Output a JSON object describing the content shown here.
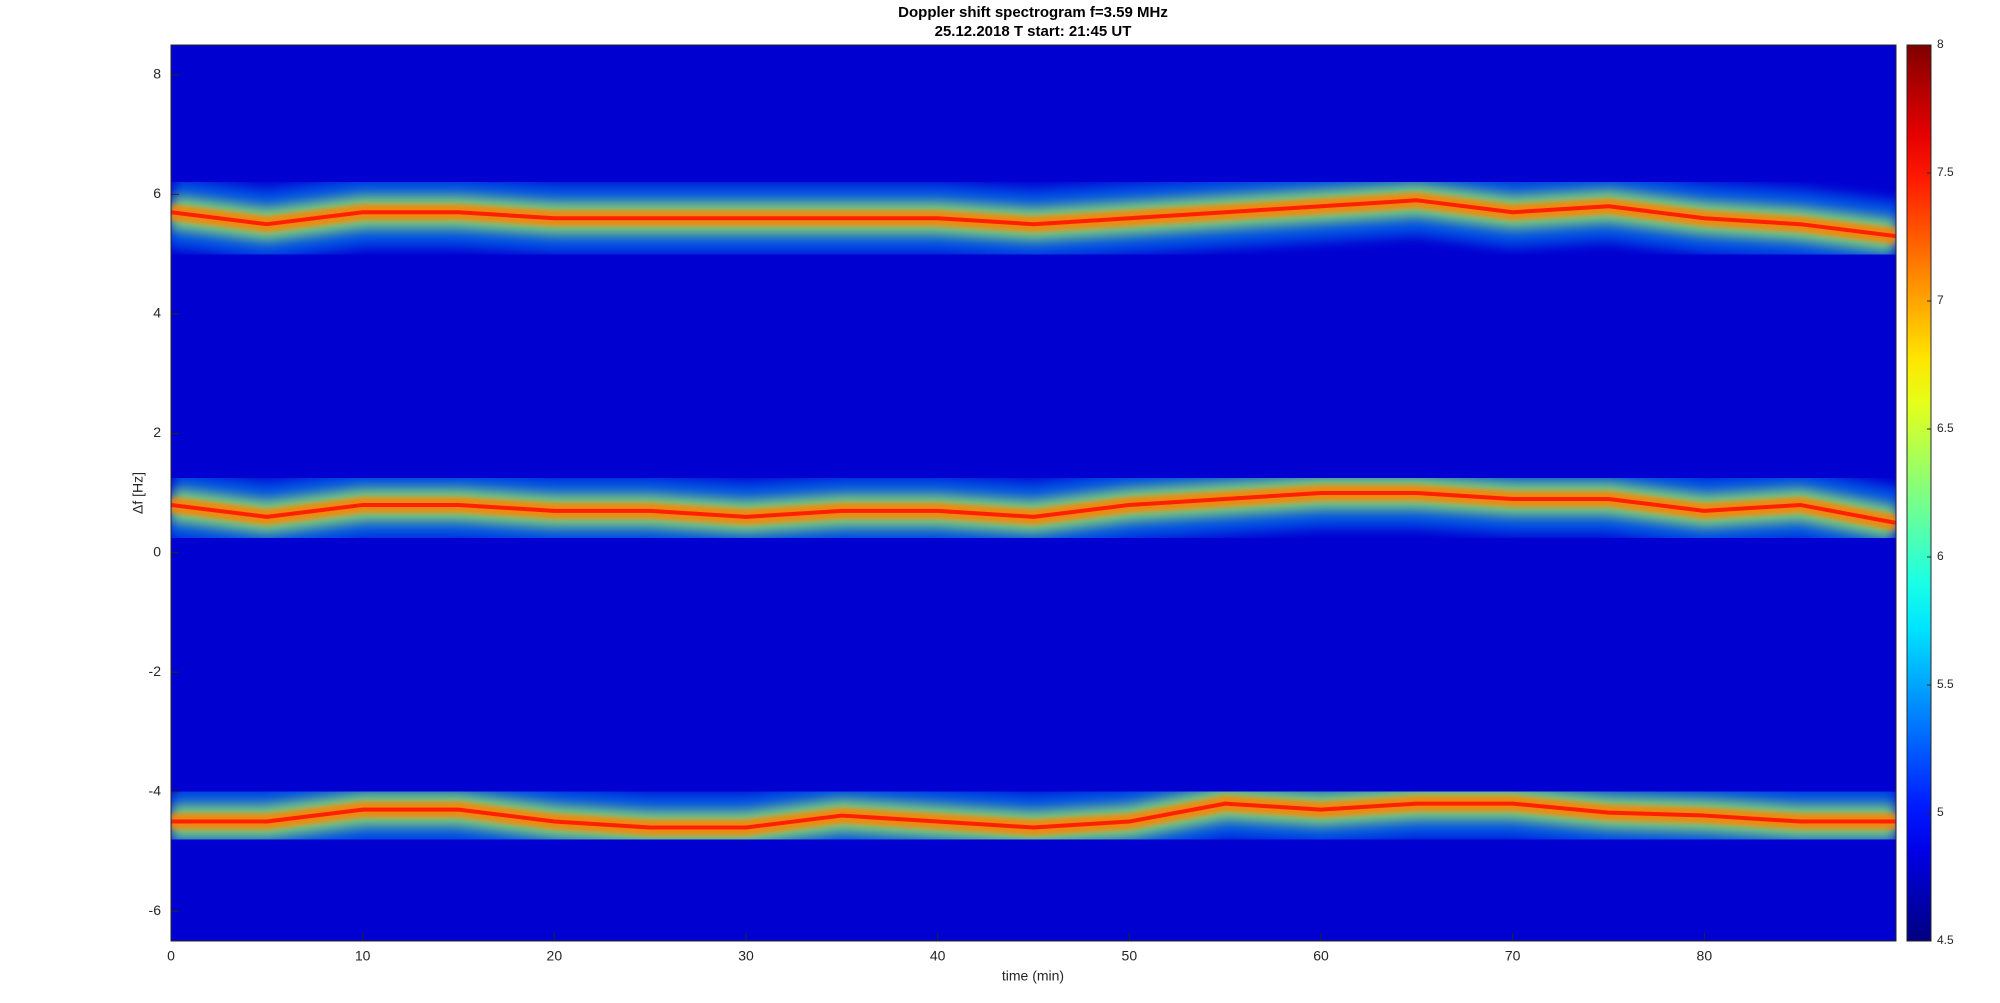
{
  "chart_data": {
    "type": "spectrogram",
    "title": "Doppler shift spectrogram f=3.59 MHz",
    "subtitle": "25.12.2018   T start: 21:45 UT",
    "xlabel": "time (min)",
    "ylabel": "Δf [Hz]",
    "xlim": [
      0,
      90
    ],
    "xticks": [
      0,
      10,
      20,
      30,
      40,
      50,
      60,
      70,
      80
    ],
    "ylim": [
      -6.5,
      8.5
    ],
    "yticks": [
      -6,
      -4,
      -2,
      0,
      2,
      4,
      6,
      8
    ],
    "colormap": "jet",
    "clim": [
      4.5,
      8
    ],
    "cticks": [
      4.5,
      5,
      5.5,
      6,
      6.5,
      7,
      7.5,
      8
    ],
    "x": [
      0,
      5,
      10,
      15,
      20,
      25,
      30,
      35,
      40,
      45,
      50,
      55,
      60,
      65,
      70,
      75,
      80,
      85,
      90
    ],
    "series": [
      {
        "color": "#ff2000",
        "values": [
          5.7,
          5.5,
          5.7,
          5.7,
          5.6,
          5.6,
          5.6,
          5.6,
          5.6,
          5.5,
          5.6,
          5.7,
          5.8,
          5.9,
          5.7,
          5.8,
          5.6,
          5.5,
          5.3
        ]
      },
      {
        "color": "#ff2000",
        "values": [
          0.8,
          0.6,
          0.8,
          0.8,
          0.7,
          0.7,
          0.6,
          0.7,
          0.7,
          0.6,
          0.8,
          0.9,
          1.0,
          1.0,
          0.9,
          0.9,
          0.7,
          0.8,
          0.5
        ]
      },
      {
        "color": "#ff2000",
        "values": [
          -4.5,
          -4.5,
          -4.3,
          -4.3,
          -4.5,
          -4.6,
          -4.6,
          -4.4,
          -4.5,
          -4.6,
          -4.5,
          -4.2,
          -4.3,
          -4.2,
          -4.2,
          -4.35,
          -4.4,
          -4.5,
          -4.5
        ]
      }
    ]
  }
}
